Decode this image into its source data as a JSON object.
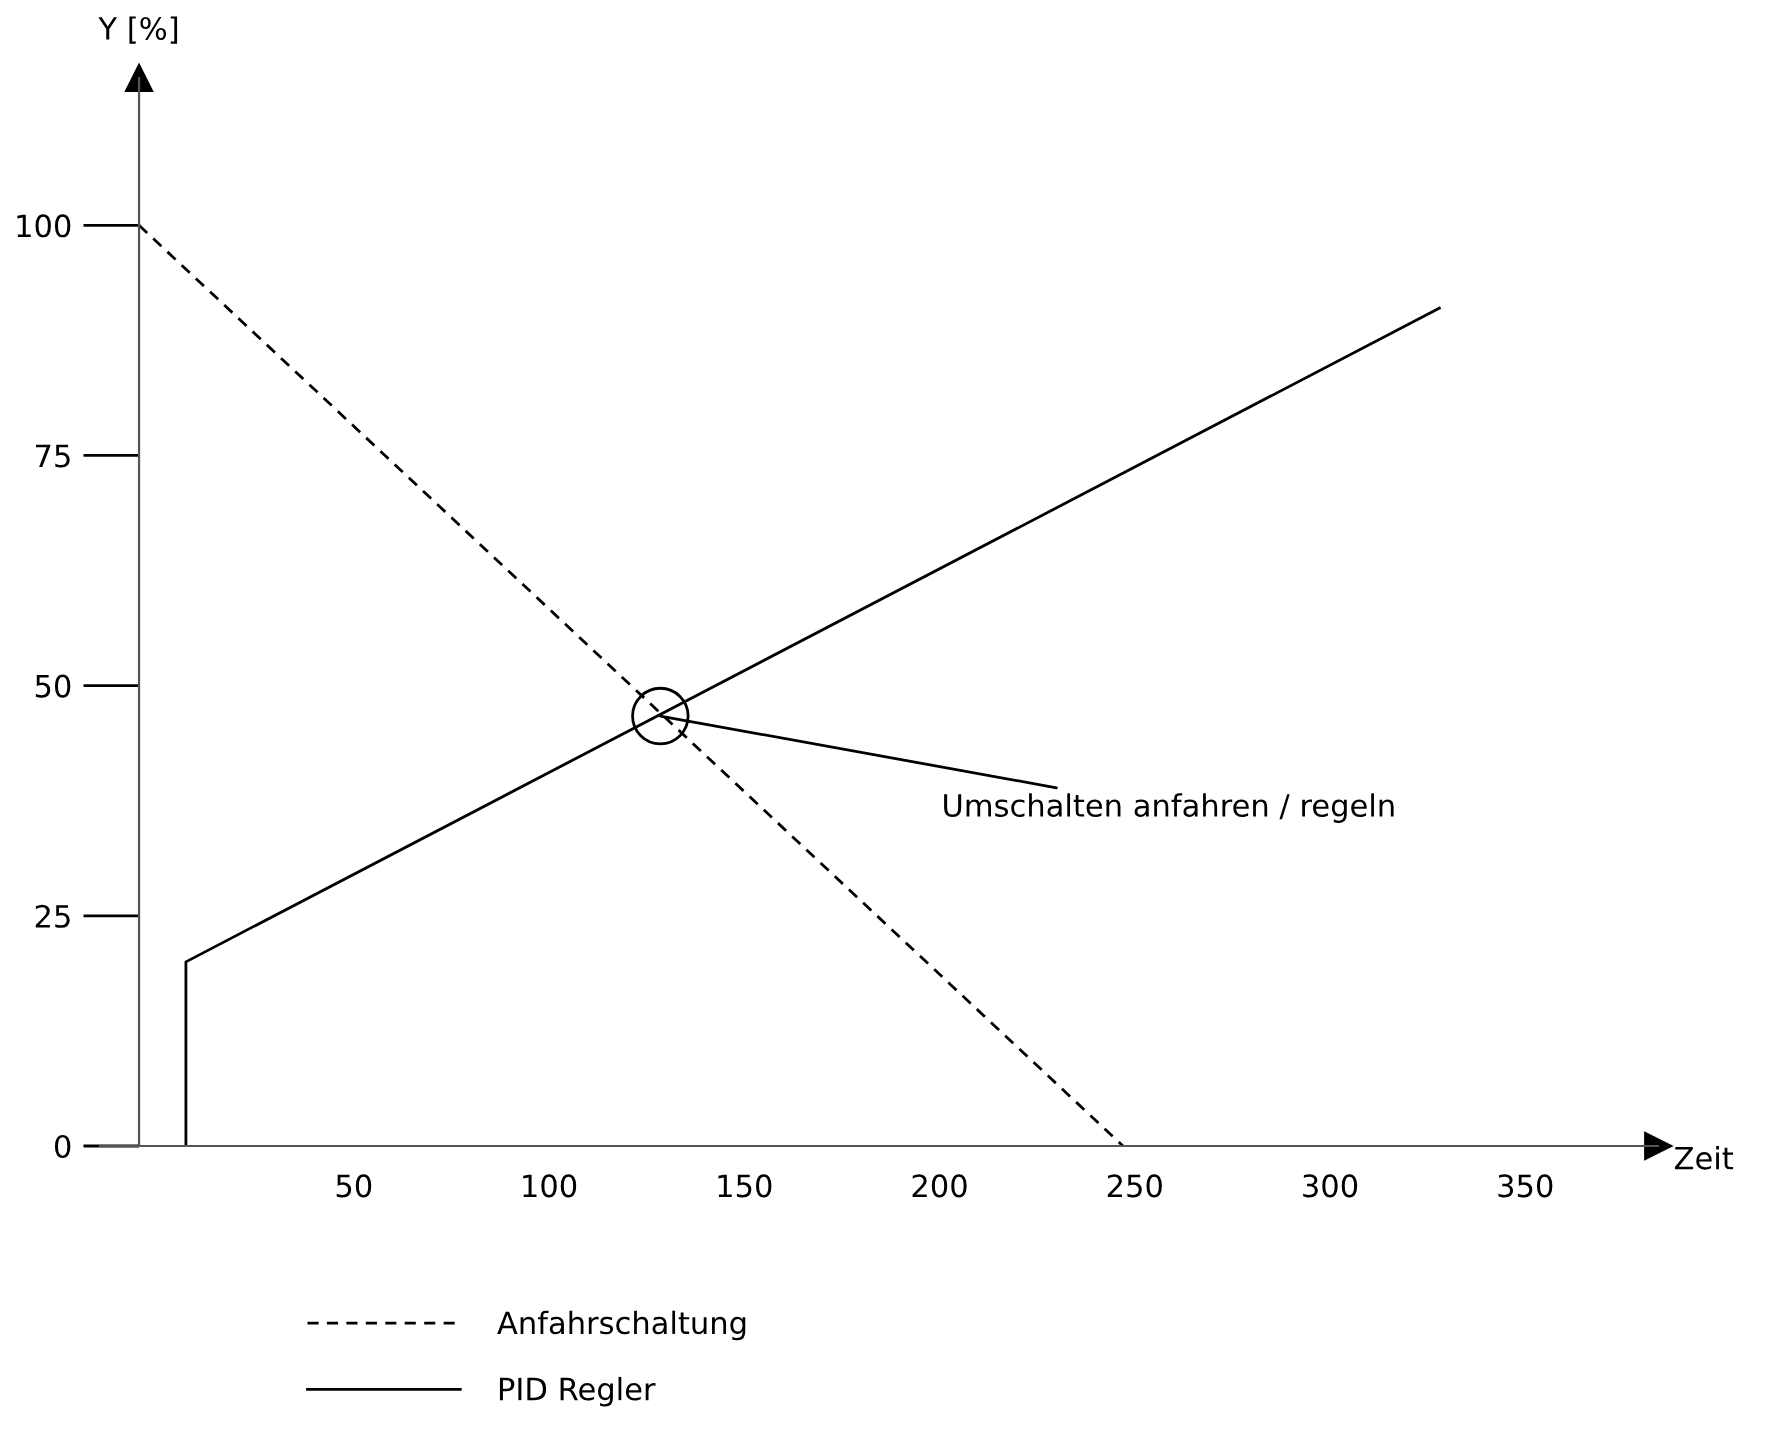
{
  "chart_data": {
    "type": "line",
    "xlabel": "Zeit",
    "ylabel": "Y [%]",
    "series": [
      {
        "name": "Anfahrschaltung",
        "color": "#000000",
        "line_style": "dashed",
        "x": [
          -5,
          247
        ],
        "values": [
          100,
          0
        ]
      },
      {
        "name": "PID Regler",
        "color": "#000000",
        "line_style": "solid",
        "x": [
          7,
          7,
          328
        ],
        "values": [
          0,
          20,
          91
        ]
      }
    ],
    "xlim": [
      -15,
      384
    ],
    "xticks": [
      50,
      100,
      150,
      200,
      250,
      300,
      350
    ],
    "ylim": [
      0,
      116
    ],
    "yticks": [
      0,
      25,
      50,
      75,
      100
    ],
    "annotations": [
      {
        "text": "Umschalten anfahren / regeln",
        "x": 128.5,
        "y": 46.7
      }
    ],
    "grid": false,
    "legend": "bottom",
    "marker": "none"
  }
}
